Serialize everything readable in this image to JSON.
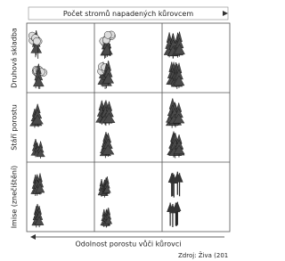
{
  "header": {
    "title": "Počet stromů napadených kůrovcem"
  },
  "rows": [
    {
      "label": "Druhová skladba"
    },
    {
      "label": "Stáří porostu"
    },
    {
      "label": "Imise (znečištění)"
    }
  ],
  "footer": {
    "label": "Odolnost porostu vůči kůrovci",
    "source": "Zdroj: Živa (201"
  }
}
